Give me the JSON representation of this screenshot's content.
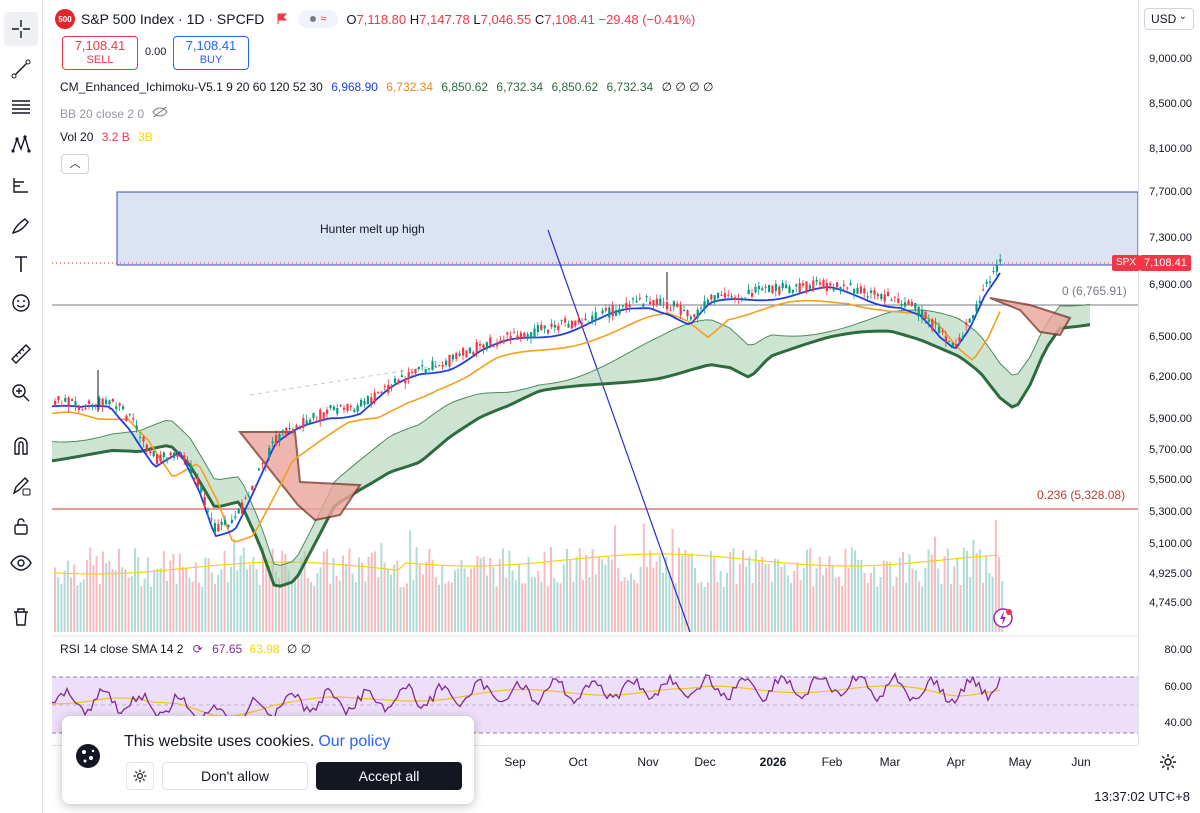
{
  "symbol": {
    "logo_text": "500",
    "title": "S&P 500 Index · 1D · SPCFD",
    "pill": "≈",
    "ohlc": {
      "o_label": "O",
      "o": "7,118.80",
      "h_label": "H",
      "h": "7,147.78",
      "l_label": "L",
      "l": "7,046.55",
      "c_label": "C",
      "c": "7,108.41",
      "chg": "−29.48 (−0.41%)"
    }
  },
  "trade": {
    "sell_price": "7,108.41",
    "sell_label": "SELL",
    "spread": "0.00",
    "buy_price": "7,108.41",
    "buy_label": "BUY"
  },
  "indicators": {
    "ichimoku": {
      "name": "CM_Enhanced_Ichimoku-V5.1 9 20 60 120 52 30",
      "v1": "6,968.90",
      "v2": "6,732.34",
      "v3": "6,850.62",
      "v4": "6,732.34",
      "v5": "6,850.62",
      "v6": "6,732.34",
      "tail": "∅ ∅ ∅ ∅"
    },
    "bb": {
      "name": "BB 20 close 2 0"
    },
    "vol": {
      "name": "Vol 20",
      "v1": "3.2 B",
      "v2": "3B"
    },
    "rsi": {
      "name": "RSI 14 close SMA 14 2",
      "v1": "67.65",
      "v2": "63.98",
      "tail": "∅ ∅"
    }
  },
  "price_scale": {
    "currency": "USD",
    "ticks": [
      "9,000.00",
      "8,500.00",
      "8,100.00",
      "7,700.00",
      "7,300.00",
      "6,900.00",
      "6,500.00",
      "6,200.00",
      "5,900.00",
      "5,700.00",
      "5,500.00",
      "5,300.00",
      "5,100.00",
      "4,925.00",
      "4,745.00"
    ],
    "spx_tag": "SPX",
    "last_price": "7,108.41"
  },
  "rsi_scale": {
    "ticks": [
      "80.00",
      "60.00",
      "40.00"
    ]
  },
  "annotations": {
    "zone_label": "Hunter melt up high",
    "fib0": "0 (6,765.91)",
    "fib236": "0.236 (5,328.08)"
  },
  "time_axis": {
    "labels": [
      "Sep",
      "Oct",
      "Nov",
      "Dec",
      "2026",
      "Feb",
      "Mar",
      "Apr",
      "May",
      "Jun"
    ],
    "clock": "13:37:02 UTC+8"
  },
  "cookie": {
    "text": "This website uses cookies.",
    "link": "Our policy",
    "dont_allow": "Don't allow",
    "accept_all": "Accept all"
  },
  "toolbar": [
    "crosshair-icon",
    "trendline-icon",
    "fib-icon",
    "pattern-icon",
    "projection-icon",
    "brush-icon",
    "text-icon",
    "emoji-icon",
    "ruler-icon",
    "zoom-icon",
    "magnet-icon",
    "lock-drawing-icon",
    "lock-icon",
    "eye-icon",
    "trash-icon"
  ],
  "colors": {
    "down": "#f23645",
    "up": "#089981",
    "accent": "#2962ff",
    "tenkan": "#1e3fe0",
    "kijun": "#f59f1e",
    "cloud_green": "#2e6b3f",
    "cloud_red": "#7a3a2a",
    "rsi": "#7e2a96",
    "rsi_band": "#e9d7f7",
    "zone": "#dce4f3"
  }
}
